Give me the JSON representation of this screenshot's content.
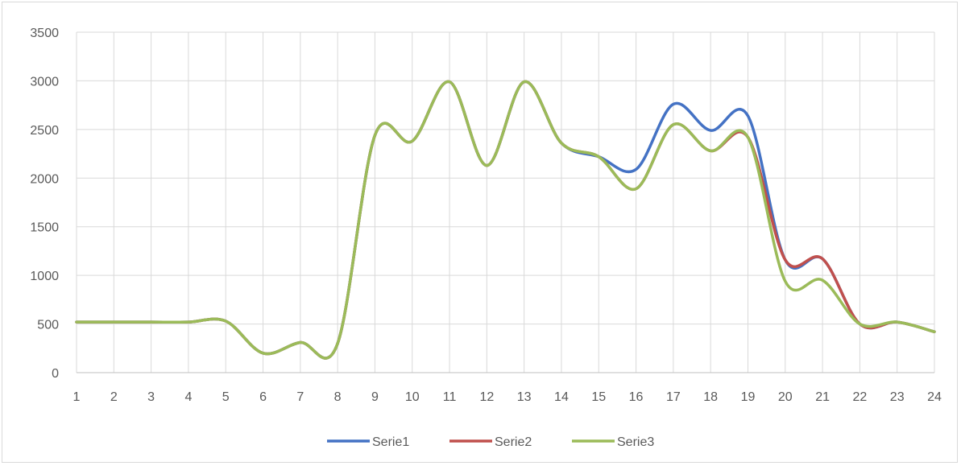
{
  "chart_data": {
    "type": "line",
    "title": "",
    "xlabel": "",
    "ylabel": "",
    "x": [
      1,
      2,
      3,
      4,
      5,
      6,
      7,
      8,
      9,
      10,
      11,
      12,
      13,
      14,
      15,
      16,
      17,
      18,
      19,
      20,
      21,
      22,
      23,
      24
    ],
    "xlim": [
      1,
      24
    ],
    "ylim": [
      0,
      3500
    ],
    "yticks": [
      0,
      500,
      1000,
      1500,
      2000,
      2500,
      3000,
      3500
    ],
    "grid": true,
    "legend_position": "bottom",
    "smooth": true,
    "series": [
      {
        "name": "Serie1",
        "color": "#4472c4",
        "values": [
          520,
          520,
          520,
          520,
          530,
          200,
          310,
          300,
          2440,
          2380,
          2990,
          2130,
          2990,
          2360,
          2220,
          2090,
          2760,
          2490,
          2640,
          1160,
          1170,
          500,
          520,
          420
        ]
      },
      {
        "name": "Serie2",
        "color": "#c0504d",
        "values": [
          520,
          520,
          520,
          520,
          530,
          200,
          310,
          300,
          2440,
          2380,
          2990,
          2130,
          2990,
          2360,
          2220,
          1890,
          2550,
          2280,
          2420,
          1160,
          1170,
          500,
          520,
          420
        ]
      },
      {
        "name": "Serie3",
        "color": "#9bbb59",
        "values": [
          520,
          520,
          520,
          520,
          530,
          200,
          310,
          300,
          2440,
          2380,
          2990,
          2130,
          2990,
          2360,
          2220,
          1890,
          2550,
          2280,
          2420,
          940,
          950,
          500,
          520,
          420
        ]
      }
    ]
  }
}
